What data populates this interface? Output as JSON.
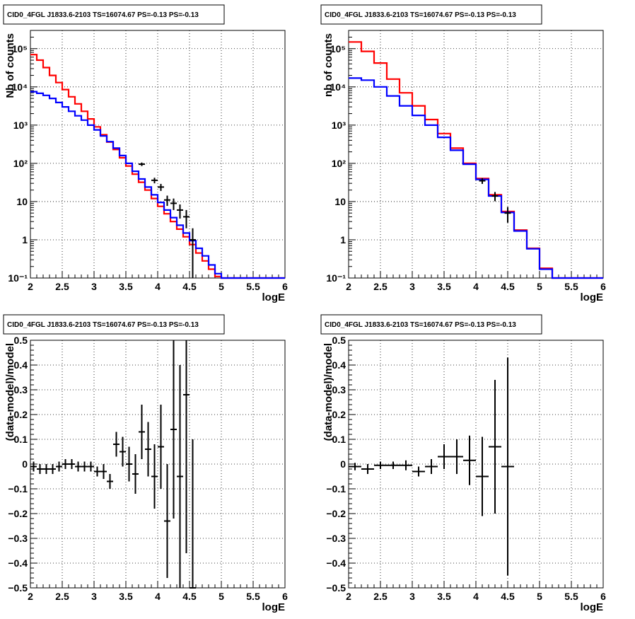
{
  "colors": {
    "model_red": "#ff0000",
    "model_blue": "#0000ff",
    "data": "#000000",
    "grid": "#000000"
  },
  "chart_data": [
    {
      "panel": "spectrum-left",
      "type": "line",
      "title": "CID0_4FGL J1833.6-2103 TS=16074.67 PS=-0.13 PS=-0.13",
      "xlabel": "logE",
      "ylabel": "Nb of counts",
      "xlim": [
        2,
        6
      ],
      "ylim": [
        0.1,
        300000
      ],
      "yscale": "log",
      "grid": true,
      "xticks": [
        "2",
        "2.5",
        "3",
        "3.5",
        "4",
        "4.5",
        "5",
        "5.5",
        "6"
      ],
      "yticks": [
        {
          "v": 0.1,
          "label": "10⁻¹"
        },
        {
          "v": 1,
          "label": "1"
        },
        {
          "v": 10,
          "label": "10"
        },
        {
          "v": 100,
          "label": "10²"
        },
        {
          "v": 1000,
          "label": "10³"
        },
        {
          "v": 10000,
          "label": "10⁴"
        },
        {
          "v": 100000,
          "label": "10⁵"
        }
      ],
      "bin_edges": [
        2.0,
        2.1,
        2.2,
        2.3,
        2.4,
        2.5,
        2.6,
        2.7,
        2.8,
        2.9,
        3.0,
        3.1,
        3.2,
        3.3,
        3.4,
        3.5,
        3.6,
        3.7,
        3.8,
        3.9,
        4.0,
        4.1,
        4.2,
        4.3,
        4.4,
        4.5,
        4.6,
        4.7,
        4.8,
        4.9,
        5.0,
        5.1,
        5.2,
        5.3,
        5.4,
        5.5,
        5.6,
        5.7,
        5.8,
        5.9,
        6.0
      ],
      "series": [
        {
          "name": "",
          "color": "red",
          "values": [
            70000,
            50000,
            32000,
            20000,
            13000,
            8500,
            5500,
            3600,
            2300,
            1450,
            900,
            560,
            360,
            230,
            140,
            85,
            52,
            32,
            20,
            12,
            7.5,
            4.8,
            3.0,
            1.9,
            1.2,
            0.75,
            0.45,
            0.28,
            0.17,
            0.11,
            0.1,
            0.1,
            0.1,
            0.1,
            0.1,
            0.1,
            0.1,
            0.1,
            0.1,
            0.1
          ]
        },
        {
          "name": "",
          "color": "blue",
          "values": [
            7500,
            6800,
            6000,
            5000,
            3900,
            3000,
            2300,
            1750,
            1350,
            1000,
            750,
            520,
            370,
            250,
            160,
            100,
            62,
            39,
            24,
            15,
            9.5,
            6.0,
            3.8,
            2.4,
            1.5,
            0.95,
            0.6,
            0.38,
            0.22,
            0.13,
            0.1,
            0.1,
            0.1,
            0.1,
            0.1,
            0.1,
            0.1,
            0.1,
            0.1,
            0.1
          ]
        }
      ],
      "data_points": [
        {
          "x": 3.75,
          "y": 95,
          "yerr": 10
        },
        {
          "x": 3.95,
          "y": 36,
          "yerr": 6
        },
        {
          "x": 4.05,
          "y": 24,
          "yerr": 5
        },
        {
          "x": 4.15,
          "y": 11,
          "yerr": 3.3
        },
        {
          "x": 4.25,
          "y": 9,
          "yerr": 3
        },
        {
          "x": 4.35,
          "y": 6,
          "yerr": 2.4
        },
        {
          "x": 4.45,
          "y": 4,
          "yerr": 2
        },
        {
          "x": 4.55,
          "y": 1,
          "yerr": 1
        }
      ]
    },
    {
      "panel": "spectrum-right",
      "type": "line",
      "title": "CID0_4FGL J1833.6-2103 TS=16074.67 PS=-0.13 PS=-0.13",
      "xlabel": "logE",
      "ylabel": "nb of counts",
      "xlim": [
        2,
        6
      ],
      "ylim": [
        0.1,
        300000
      ],
      "yscale": "log",
      "grid": true,
      "xticks": [
        "2",
        "2.5",
        "3",
        "3.5",
        "4",
        "4.5",
        "5",
        "5.5",
        "6"
      ],
      "yticks": [
        {
          "v": 0.1,
          "label": "10⁻¹"
        },
        {
          "v": 1,
          "label": "1"
        },
        {
          "v": 10,
          "label": "10"
        },
        {
          "v": 100,
          "label": "10²"
        },
        {
          "v": 1000,
          "label": "10³"
        },
        {
          "v": 10000,
          "label": "10⁴"
        },
        {
          "v": 100000,
          "label": "10⁵"
        }
      ],
      "bin_edges": [
        2.0,
        2.2,
        2.4,
        2.6,
        2.8,
        3.0,
        3.2,
        3.4,
        3.6,
        3.8,
        4.0,
        4.2,
        4.4,
        4.6,
        4.8,
        5.0,
        5.2,
        5.4,
        5.6,
        5.8,
        6.0
      ],
      "series": [
        {
          "name": "",
          "color": "red",
          "values": [
            150000,
            85000,
            42000,
            16000,
            7000,
            3200,
            1400,
            600,
            250,
            100,
            40,
            15,
            5.5,
            1.8,
            0.6,
            0.18,
            0.1,
            0.1,
            0.1,
            0.1
          ]
        },
        {
          "name": "",
          "color": "blue",
          "values": [
            17000,
            15000,
            10000,
            5800,
            3200,
            1800,
            1000,
            480,
            220,
            95,
            38,
            14,
            5.2,
            1.7,
            0.58,
            0.17,
            0.1,
            0.1,
            0.1,
            0.1
          ]
        }
      ],
      "data_points": [
        {
          "x": 4.1,
          "y": 35,
          "yerr": 6
        },
        {
          "x": 4.3,
          "y": 14,
          "yerr": 3.8
        },
        {
          "x": 4.5,
          "y": 5,
          "yerr": 2.2
        }
      ]
    },
    {
      "panel": "residual-left",
      "type": "scatter",
      "title": "CID0_4FGL J1833.6-2103 TS=16074.67 PS=-0.13 PS=-0.13",
      "xlabel": "logE",
      "ylabel": "(data-model)/model",
      "xlim": [
        2,
        6
      ],
      "ylim": [
        -0.5,
        0.5
      ],
      "grid": true,
      "xticks": [
        "2",
        "2.5",
        "3",
        "3.5",
        "4",
        "4.5",
        "5",
        "5.5",
        "6"
      ],
      "yticks": [
        {
          "v": -0.5,
          "label": "−0.5"
        },
        {
          "v": -0.4,
          "label": "−0.4"
        },
        {
          "v": -0.3,
          "label": "−0.3"
        },
        {
          "v": -0.2,
          "label": "−0.2"
        },
        {
          "v": -0.1,
          "label": "−0.1"
        },
        {
          "v": 0,
          "label": "0"
        },
        {
          "v": 0.1,
          "label": "0.1"
        },
        {
          "v": 0.2,
          "label": "0.2"
        },
        {
          "v": 0.3,
          "label": "0.3"
        },
        {
          "v": 0.4,
          "label": "0.4"
        },
        {
          "v": 0.5,
          "label": "0.5"
        }
      ],
      "data_points": [
        {
          "x": 2.05,
          "y": -0.01,
          "yerr": 0.02,
          "xerr": 0.05
        },
        {
          "x": 2.15,
          "y": -0.02,
          "yerr": 0.02,
          "xerr": 0.05
        },
        {
          "x": 2.25,
          "y": -0.02,
          "yerr": 0.02,
          "xerr": 0.05
        },
        {
          "x": 2.35,
          "y": -0.02,
          "yerr": 0.02,
          "xerr": 0.05
        },
        {
          "x": 2.45,
          "y": -0.01,
          "yerr": 0.02,
          "xerr": 0.05
        },
        {
          "x": 2.55,
          "y": 0.0,
          "yerr": 0.02,
          "xerr": 0.05
        },
        {
          "x": 2.65,
          "y": 0.0,
          "yerr": 0.02,
          "xerr": 0.05
        },
        {
          "x": 2.75,
          "y": -0.01,
          "yerr": 0.02,
          "xerr": 0.05
        },
        {
          "x": 2.85,
          "y": -0.01,
          "yerr": 0.02,
          "xerr": 0.05
        },
        {
          "x": 2.95,
          "y": -0.01,
          "yerr": 0.02,
          "xerr": 0.05
        },
        {
          "x": 3.05,
          "y": -0.03,
          "yerr": 0.02,
          "xerr": 0.05
        },
        {
          "x": 3.15,
          "y": -0.03,
          "yerr": 0.03,
          "xerr": 0.05
        },
        {
          "x": 3.25,
          "y": -0.07,
          "yerr": 0.03,
          "xerr": 0.05
        },
        {
          "x": 3.35,
          "y": 0.08,
          "yerr": 0.05,
          "xerr": 0.05
        },
        {
          "x": 3.45,
          "y": 0.05,
          "yerr": 0.06,
          "xerr": 0.05
        },
        {
          "x": 3.55,
          "y": 0.0,
          "yerr": 0.07,
          "xerr": 0.05
        },
        {
          "x": 3.65,
          "y": -0.04,
          "yerr": 0.08,
          "xerr": 0.05
        },
        {
          "x": 3.75,
          "y": 0.13,
          "yerr": 0.11,
          "xerr": 0.05
        },
        {
          "x": 3.85,
          "y": 0.06,
          "yerr": 0.11,
          "xerr": 0.05
        },
        {
          "x": 3.95,
          "y": -0.05,
          "yerr": 0.13,
          "xerr": 0.05
        },
        {
          "x": 4.05,
          "y": 0.07,
          "yerr": 0.17,
          "xerr": 0.05
        },
        {
          "x": 4.15,
          "y": -0.23,
          "yerr": 0.23,
          "xerr": 0.05
        },
        {
          "x": 4.25,
          "y": 0.14,
          "yerr": 0.36,
          "xerr": 0.05
        },
        {
          "x": 4.35,
          "y": -0.05,
          "yerr": 0.45,
          "xerr": 0.05
        },
        {
          "x": 4.45,
          "y": 0.28,
          "yerr": 0.64,
          "xerr": 0.05
        },
        {
          "x": 4.55,
          "y": -0.5,
          "yerr": 0.6,
          "xerr": 0.05
        }
      ]
    },
    {
      "panel": "residual-right",
      "type": "scatter",
      "title": "CID0_4FGL J1833.6-2103 TS=16074.67 PS=-0.13 PS=-0.13",
      "xlabel": "logE",
      "ylabel": "(data-model)/model",
      "xlim": [
        2,
        6
      ],
      "ylim": [
        -0.5,
        0.5
      ],
      "grid": true,
      "xticks": [
        "2",
        "2.5",
        "3",
        "3.5",
        "4",
        "4.5",
        "5",
        "5.5",
        "6"
      ],
      "yticks": [
        {
          "v": -0.5,
          "label": "−0.5"
        },
        {
          "v": -0.4,
          "label": "−0.4"
        },
        {
          "v": -0.3,
          "label": "−0.3"
        },
        {
          "v": -0.2,
          "label": "−0.2"
        },
        {
          "v": -0.1,
          "label": "−0.1"
        },
        {
          "v": 0,
          "label": "0"
        },
        {
          "v": 0.1,
          "label": "0.1"
        },
        {
          "v": 0.2,
          "label": "0.2"
        },
        {
          "v": 0.3,
          "label": "0.3"
        },
        {
          "v": 0.4,
          "label": "0.4"
        },
        {
          "v": 0.5,
          "label": "0.5"
        }
      ],
      "data_points": [
        {
          "x": 2.1,
          "y": -0.01,
          "yerr": 0.015,
          "xerr": 0.1
        },
        {
          "x": 2.3,
          "y": -0.02,
          "yerr": 0.02,
          "xerr": 0.1
        },
        {
          "x": 2.5,
          "y": -0.005,
          "yerr": 0.015,
          "xerr": 0.1
        },
        {
          "x": 2.7,
          "y": -0.005,
          "yerr": 0.015,
          "xerr": 0.1
        },
        {
          "x": 2.9,
          "y": -0.005,
          "yerr": 0.02,
          "xerr": 0.1
        },
        {
          "x": 3.1,
          "y": -0.03,
          "yerr": 0.02,
          "xerr": 0.1
        },
        {
          "x": 3.3,
          "y": -0.01,
          "yerr": 0.03,
          "xerr": 0.1
        },
        {
          "x": 3.5,
          "y": 0.03,
          "yerr": 0.05,
          "xerr": 0.1
        },
        {
          "x": 3.7,
          "y": 0.03,
          "yerr": 0.07,
          "xerr": 0.1
        },
        {
          "x": 3.9,
          "y": 0.015,
          "yerr": 0.1,
          "xerr": 0.1
        },
        {
          "x": 4.1,
          "y": -0.05,
          "yerr": 0.16,
          "xerr": 0.1
        },
        {
          "x": 4.3,
          "y": 0.07,
          "yerr": 0.27,
          "xerr": 0.1
        },
        {
          "x": 4.5,
          "y": -0.01,
          "yerr": 0.44,
          "xerr": 0.1
        }
      ]
    }
  ]
}
